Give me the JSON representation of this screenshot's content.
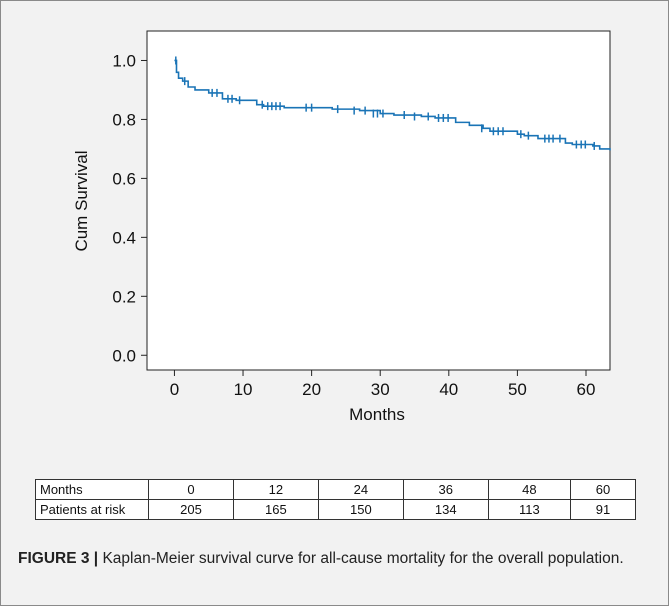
{
  "chart_data": {
    "type": "line",
    "xlabel": "Months",
    "ylabel": "Cum Survival",
    "xlim": [
      -4,
      63.5
    ],
    "ylim": [
      -0.05,
      1.1
    ],
    "xticks": [
      0,
      10,
      20,
      30,
      40,
      50,
      60
    ],
    "yticks": [
      "0.0",
      "0.2",
      "0.4",
      "0.6",
      "0.8",
      "1.0"
    ],
    "grid": false,
    "line_color": "#1a74b6",
    "series": [
      {
        "step_points": [
          [
            0,
            1.0
          ],
          [
            0.3,
            0.96
          ],
          [
            0.6,
            0.94
          ],
          [
            1.2,
            0.93
          ],
          [
            2,
            0.91
          ],
          [
            3,
            0.9
          ],
          [
            5,
            0.89
          ],
          [
            7,
            0.87
          ],
          [
            9,
            0.865
          ],
          [
            12,
            0.85
          ],
          [
            13,
            0.845
          ],
          [
            16,
            0.84
          ],
          [
            21,
            0.84
          ],
          [
            23,
            0.835
          ],
          [
            27,
            0.83
          ],
          [
            30,
            0.82
          ],
          [
            32,
            0.815
          ],
          [
            36,
            0.81
          ],
          [
            38,
            0.805
          ],
          [
            41,
            0.79
          ],
          [
            43,
            0.78
          ],
          [
            45,
            0.77
          ],
          [
            46,
            0.76
          ],
          [
            48,
            0.76
          ],
          [
            50,
            0.75
          ],
          [
            51,
            0.745
          ],
          [
            53,
            0.735
          ],
          [
            57,
            0.72
          ],
          [
            58,
            0.715
          ],
          [
            61,
            0.71
          ],
          [
            62,
            0.7
          ],
          [
            63.5,
            0.695
          ]
        ],
        "censor_marks": [
          [
            0.2,
            1.0
          ],
          [
            1.5,
            0.93
          ],
          [
            5.5,
            0.89
          ],
          [
            6.2,
            0.89
          ],
          [
            7.8,
            0.87
          ],
          [
            8.4,
            0.87
          ],
          [
            9.5,
            0.865
          ],
          [
            12.8,
            0.85
          ],
          [
            13.6,
            0.845
          ],
          [
            14.2,
            0.845
          ],
          [
            14.8,
            0.845
          ],
          [
            15.4,
            0.845
          ],
          [
            19.2,
            0.84
          ],
          [
            20.0,
            0.84
          ],
          [
            23.8,
            0.835
          ],
          [
            26.2,
            0.83
          ],
          [
            27.8,
            0.83
          ],
          [
            29.0,
            0.82
          ],
          [
            29.6,
            0.82
          ],
          [
            30.4,
            0.82
          ],
          [
            33.5,
            0.815
          ],
          [
            35.0,
            0.81
          ],
          [
            37.0,
            0.81
          ],
          [
            38.5,
            0.805
          ],
          [
            39.2,
            0.805
          ],
          [
            39.9,
            0.805
          ],
          [
            44.8,
            0.77
          ],
          [
            46.5,
            0.76
          ],
          [
            47.2,
            0.76
          ],
          [
            47.9,
            0.76
          ],
          [
            50.5,
            0.75
          ],
          [
            51.6,
            0.745
          ],
          [
            54.0,
            0.735
          ],
          [
            54.6,
            0.735
          ],
          [
            55.2,
            0.735
          ],
          [
            56.2,
            0.735
          ],
          [
            58.6,
            0.715
          ],
          [
            59.3,
            0.715
          ],
          [
            59.9,
            0.715
          ],
          [
            61.2,
            0.71
          ]
        ]
      }
    ]
  },
  "risk_table": {
    "row1_label": "Months",
    "months": [
      "0",
      "12",
      "24",
      "36",
      "48",
      "60"
    ],
    "row2_label": "Patients at risk",
    "patients": [
      "205",
      "165",
      "150",
      "134",
      "113",
      "91"
    ]
  },
  "caption": {
    "label": "FIGURE 3 |",
    "text": " Kaplan-Meier survival curve for all-cause mortality for the overall population."
  }
}
